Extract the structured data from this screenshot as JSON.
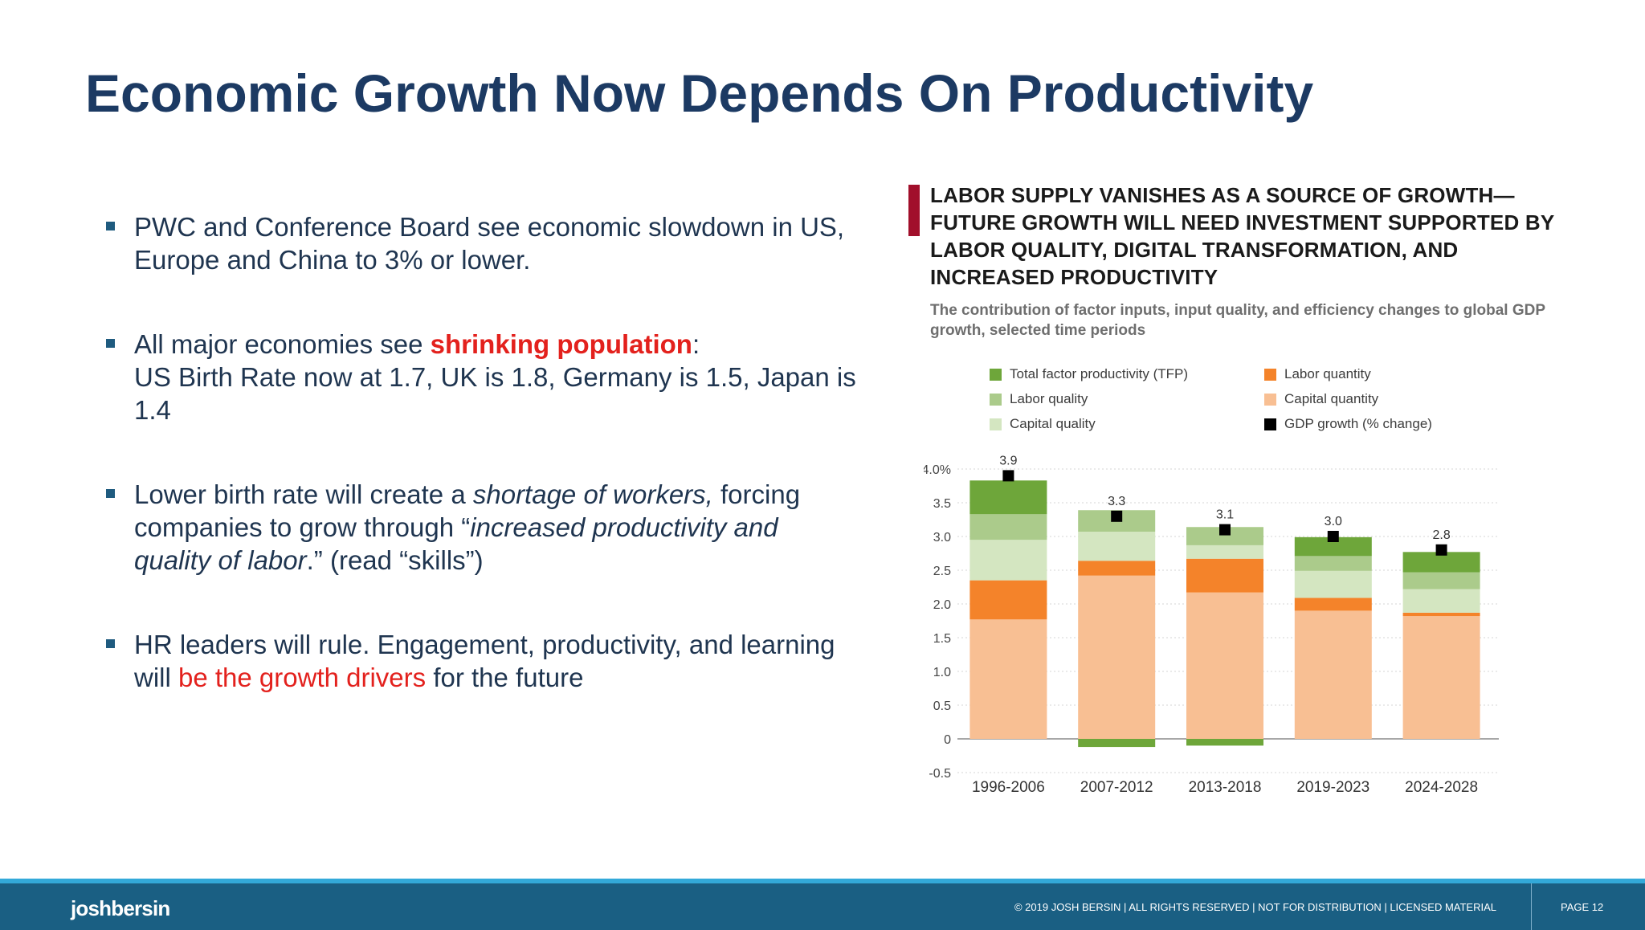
{
  "slide": {
    "title": "Economic Growth Now Depends On Productivity"
  },
  "bullets": [
    {
      "text": "PWC and Conference Board see economic slowdown in US, Europe and China to 3% or lower."
    },
    {
      "pre": "All major economies see ",
      "highlight": "shrinking population",
      "post": ":",
      "line2": "US Birth Rate now at 1.7, UK is 1.8, Germany is 1.5, Japan is 1.4"
    },
    {
      "pre": "Lower birth rate will create a ",
      "em1": "shortage of workers,",
      "mid": " forcing companies to grow through “",
      "em2": "increased productivity and quality of labor",
      "post": ".” (read “skills”)"
    },
    {
      "pre": "HR leaders will rule.  Engagement, productivity, and learning will ",
      "highlight": "be the growth drivers",
      "post": " for the future"
    }
  ],
  "chart_data": {
    "type": "bar",
    "stacked": true,
    "title": "LABOR SUPPLY VANISHES AS A SOURCE OF GROWTH— FUTURE GROWTH WILL NEED INVESTMENT SUPPORTED BY LABOR QUALITY, DIGITAL TRANSFORMATION, AND INCREASED PRODUCTIVITY",
    "subtitle": "The contribution of factor inputs, input quality, and efficiency changes to global GDP growth, selected time periods",
    "categories": [
      "1996-2006",
      "2007-2012",
      "2013-2018",
      "2019-2023",
      "2024-2028"
    ],
    "ylim": [
      -0.5,
      4.0
    ],
    "yticks": [
      -0.5,
      0,
      0.5,
      1.0,
      1.5,
      2.0,
      2.5,
      3.0,
      3.5,
      4.0
    ],
    "ytick_labels": [
      "-0.5",
      "0",
      "0.5",
      "1.0",
      "1.5",
      "2.0",
      "2.5",
      "3.0",
      "3.5",
      "4.0%"
    ],
    "series": [
      {
        "name": "Capital quantity",
        "color": "#f8bf93",
        "values": [
          1.77,
          2.42,
          2.17,
          1.9,
          1.82
        ]
      },
      {
        "name": "Labor quantity",
        "color": "#f4832a",
        "values": [
          0.58,
          0.22,
          0.5,
          0.19,
          0.05
        ]
      },
      {
        "name": "Capital quality",
        "color": "#d4e6c1",
        "values": [
          0.6,
          0.43,
          0.2,
          0.4,
          0.35
        ]
      },
      {
        "name": "Labor quality",
        "color": "#abcb8b",
        "values": [
          0.38,
          0.32,
          0.27,
          0.22,
          0.25
        ]
      },
      {
        "name": "Total factor productivity (TFP)",
        "color": "#6ea63a",
        "values": [
          0.5,
          -0.12,
          -0.1,
          0.28,
          0.3
        ]
      }
    ],
    "gdp_growth": {
      "name": "GDP growth (% change)",
      "color": "#000000",
      "values": [
        3.9,
        3.3,
        3.1,
        3.0,
        2.8
      ],
      "labels": [
        "3.9",
        "3.3",
        "3.1",
        "3.0",
        "2.8"
      ]
    },
    "legend": [
      {
        "name": "Total factor productivity (TFP)",
        "color": "#6ea63a"
      },
      {
        "name": "Labor quantity",
        "color": "#f4832a"
      },
      {
        "name": "Labor quality",
        "color": "#abcb8b"
      },
      {
        "name": "Capital quantity",
        "color": "#f8bf93"
      },
      {
        "name": "Capital quality",
        "color": "#d4e6c1"
      },
      {
        "name": "GDP growth (% change)",
        "color": "#000000"
      }
    ],
    "legend_position": "top"
  },
  "footer": {
    "logo": "joshbersin",
    "copyright": "© 2019 JOSH BERSIN | ALL RIGHTS RESERVED | NOT FOR DISTRIBUTION | LICENSED MATERIAL",
    "page": "PAGE  12"
  }
}
